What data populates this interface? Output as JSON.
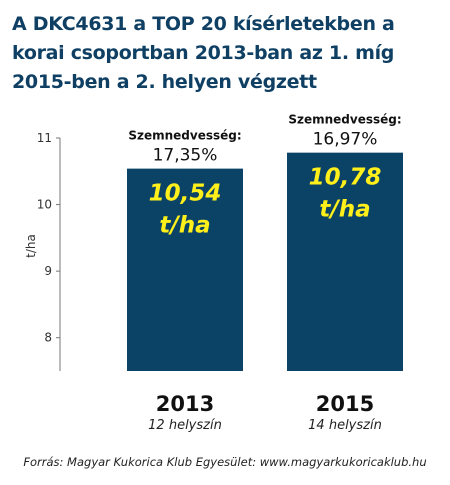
{
  "title": "A DKC4631 a TOP 20 kísérletekben a korai csoportban 2013-ban az 1. míg 2015-ben a 2. helyen végzett",
  "source": "Forrás: Magyar Kukorica Klub Egyesület: www.magyarkukoricaklub.hu",
  "colors": {
    "bar": "#0b4366",
    "bar_label": "#ffef1a",
    "title": "#0f4064"
  },
  "chart_data": {
    "type": "bar",
    "title": "A DKC4631 a TOP 20 kísérletekben a korai csoportban 2013-ban az 1. míg 2015-ben a 2. helyen végzett",
    "ylabel": "t/ha",
    "xlabel": "",
    "ylim": [
      7.5,
      11
    ],
    "yticks": [
      8,
      9,
      10,
      11
    ],
    "grid": false,
    "categories": [
      "2013",
      "2015"
    ],
    "values": [
      10.54,
      10.78
    ],
    "value_labels": [
      "10,54",
      "10,78"
    ],
    "value_unit": "t/ha",
    "sublabels": [
      "12 helyszín",
      "14 helyszín"
    ],
    "moisture_label": "Szemnedvesség:",
    "moisture": [
      "17,35%",
      "16,97%"
    ]
  }
}
